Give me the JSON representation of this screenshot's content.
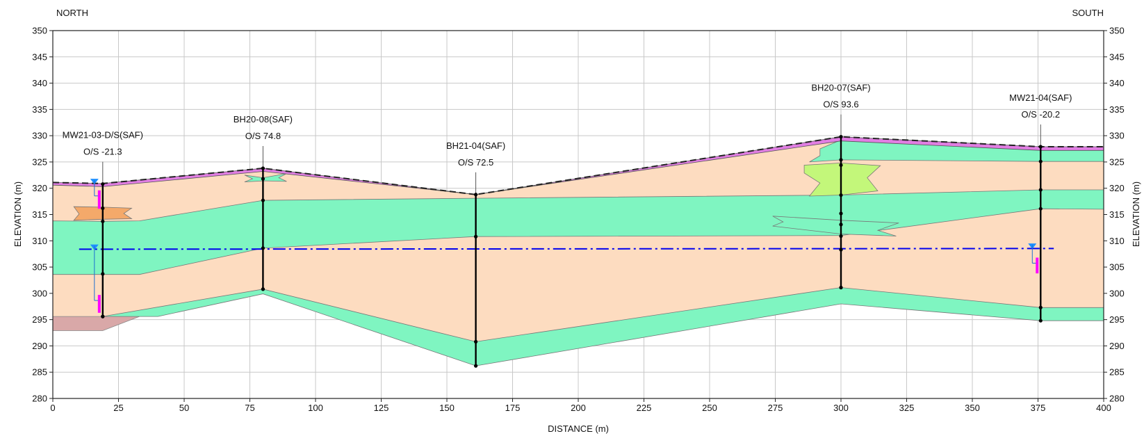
{
  "header": {
    "left": "NORTH",
    "right": "SOUTH"
  },
  "axes": {
    "xlabel": "DISTANCE (m)",
    "ylabel_left": "ELEVATION (m)",
    "ylabel_right": "ELEVATION (m)",
    "xlim": [
      0,
      400
    ],
    "ylim": [
      280,
      350
    ],
    "x_ticks": [
      0,
      25,
      50,
      75,
      100,
      125,
      150,
      175,
      200,
      225,
      250,
      275,
      300,
      325,
      350,
      375,
      400
    ],
    "y_ticks": [
      280,
      285,
      290,
      295,
      300,
      305,
      310,
      315,
      320,
      325,
      330,
      335,
      340,
      345,
      350
    ],
    "grid": true
  },
  "colors": {
    "sand": "#fddcc0",
    "green_layer": "#7ff5c1",
    "topsoil": "#e17ee3",
    "orange_lens": "#f4a96a",
    "lime_lens": "#c3f77a",
    "bedrock": "#d9a8a8",
    "water_line": "#0000ee",
    "screen": "#ff00ff",
    "water_marker": "#1e90ff"
  },
  "boreholes": [
    {
      "name": "MW21-03-D/S(SAF)",
      "offset": "O/S -21.3",
      "x": 19,
      "top": 320.8,
      "bottom": 295.6,
      "joints": [
        320.8,
        316.2,
        313.7,
        303.7,
        295.6
      ],
      "well": true,
      "water_marker": 321,
      "screen_top": 319.6,
      "screen_bottom": 316.1,
      "screen2_top": 299.7,
      "screen2_bottom": 296.3
    },
    {
      "name": "BH20-08(SAF)",
      "offset": "O/S 74.8",
      "x": 80,
      "top": 323.8,
      "bottom": 300.8,
      "joints": [
        323.8,
        321.8,
        317.7,
        308.6,
        300.8
      ],
      "well": false
    },
    {
      "name": "BH21-04(SAF)",
      "offset": "O/S 72.5",
      "x": 161,
      "top": 318.8,
      "bottom": 286.2,
      "joints": [
        318.8,
        310.8,
        290.8
      ],
      "well": false
    },
    {
      "name": "BH20-07(SAF)",
      "offset": "O/S 93.6",
      "x": 300,
      "top": 329.8,
      "bottom": 301.1,
      "joints": [
        329.8,
        325.4,
        324.4,
        318.7,
        315.2,
        313.1,
        310.9,
        308.3,
        301.1
      ],
      "well": false
    },
    {
      "name": "MW21-04(SAF)",
      "offset": "O/S -20.2",
      "x": 376,
      "top": 327.9,
      "bottom": 294.8,
      "joints": [
        327.9,
        325.1,
        319.7,
        316.1,
        297.3
      ],
      "well": true,
      "water_marker": 308.7,
      "screen_top": 306.8,
      "screen_bottom": 303.8
    }
  ],
  "ground_surface": [
    [
      0,
      321.1
    ],
    [
      19,
      320.9
    ],
    [
      80,
      323.8
    ],
    [
      161,
      318.8
    ],
    [
      300,
      329.8
    ],
    [
      376,
      327.9
    ],
    [
      400,
      327.9
    ]
  ],
  "water_table": {
    "x_start": 10,
    "x_end": 381,
    "elev": 308.4
  }
}
